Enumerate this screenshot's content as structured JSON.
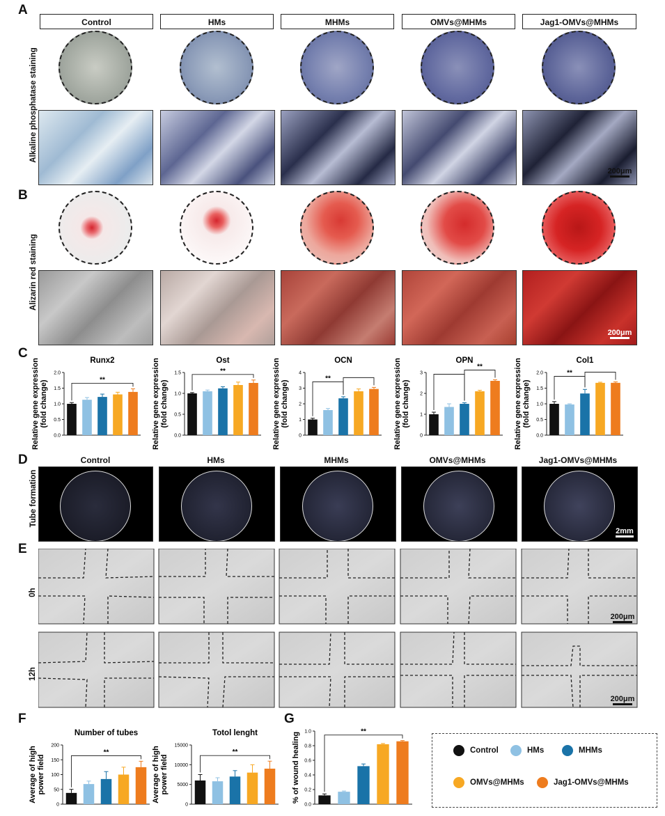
{
  "panel_letters": [
    "A",
    "B",
    "C",
    "D",
    "E",
    "F",
    "G"
  ],
  "groups": [
    "Control",
    "HMs",
    "MHMs",
    "OMVs@MHMs",
    "Jag1-OMVs@MHMs"
  ],
  "colors": {
    "Control": "#111111",
    "HMs": "#8fc1e3",
    "MHMs": "#1a73a8",
    "OMVs@MHMs": "#f7a823",
    "Jag1-OMVs@MHMs": "#ee7c1e"
  },
  "row_labels": {
    "alp": "Alkaline phosphatase staining",
    "ars": "Alizarin red staining",
    "tube": "Tube formation",
    "t0": "0h",
    "t12": "12h"
  },
  "scale_labels": {
    "um200": "200μm",
    "mm2": "2mm"
  },
  "panel_c_ylabel_line1": "Relative gene expression",
  "panel_c_ylabel_line2": "(fold change)",
  "panel_f_ylabel_line1": "Average of high",
  "panel_f_ylabel_line2": "power field",
  "panel_g_ylabel": "% of wound healing",
  "significance": "**",
  "chart_data": [
    {
      "type": "bar",
      "title": "Runx2",
      "categories": [
        "Control",
        "HMs",
        "MHMs",
        "OMVs@MHMs",
        "Jag1-OMVs@MHMs"
      ],
      "values": [
        1.0,
        1.13,
        1.22,
        1.3,
        1.38
      ],
      "errors": [
        0.04,
        0.07,
        0.09,
        0.07,
        0.1
      ],
      "ylim": [
        0,
        2.0
      ],
      "yticks": [
        "0.0",
        "0.5",
        "1.0",
        "1.5",
        "2.0"
      ],
      "ytick_values": [
        0,
        0.5,
        1,
        1.5,
        2
      ],
      "sig": [
        {
          "from": 0,
          "to": 4,
          "label": "**"
        }
      ]
    },
    {
      "type": "bar",
      "title": "Ost",
      "categories": [
        "Control",
        "HMs",
        "MHMs",
        "OMVs@MHMs",
        "Jag1-OMVs@MHMs"
      ],
      "values": [
        1.0,
        1.05,
        1.12,
        1.2,
        1.25
      ],
      "errors": [
        0.02,
        0.03,
        0.04,
        0.07,
        0.07
      ],
      "ylim": [
        0,
        1.5
      ],
      "yticks": [
        "0.0",
        "0.5",
        "1.0",
        "1.5"
      ],
      "ytick_values": [
        0,
        0.5,
        1,
        1.5
      ],
      "sig": [
        {
          "from": 0,
          "to": 4,
          "label": "**"
        }
      ]
    },
    {
      "type": "bar",
      "title": "OCN",
      "categories": [
        "Control",
        "HMs",
        "MHMs",
        "OMVs@MHMs",
        "Jag1-OMVs@MHMs"
      ],
      "values": [
        1.0,
        1.6,
        2.35,
        2.8,
        2.95
      ],
      "errors": [
        0.08,
        0.1,
        0.1,
        0.15,
        0.1
      ],
      "ylim": [
        0,
        4
      ],
      "yticks": [
        "0",
        "1",
        "2",
        "3",
        "4"
      ],
      "ytick_values": [
        0,
        1,
        2,
        3,
        4
      ],
      "sig": [
        {
          "from": 0,
          "to": 2,
          "label": "**"
        },
        {
          "from": 2,
          "to": 4,
          "label": ""
        }
      ]
    },
    {
      "type": "bar",
      "title": "OPN",
      "categories": [
        "Control",
        "HMs",
        "MHMs",
        "OMVs@MHMs",
        "Jag1-OMVs@MHMs"
      ],
      "values": [
        1.0,
        1.35,
        1.5,
        2.1,
        2.6
      ],
      "errors": [
        0.1,
        0.15,
        0.05,
        0.05,
        0.05
      ],
      "ylim": [
        0,
        3
      ],
      "yticks": [
        "0",
        "1",
        "2",
        "3"
      ],
      "ytick_values": [
        0,
        1,
        2,
        3
      ],
      "sig": [
        {
          "from": 0,
          "to": 2,
          "label": ""
        },
        {
          "from": 2,
          "to": 4,
          "label": "**"
        }
      ]
    },
    {
      "type": "bar",
      "title": "Col1",
      "categories": [
        "Control",
        "HMs",
        "MHMs",
        "OMVs@MHMs",
        "Jag1-OMVs@MHMs"
      ],
      "values": [
        1.0,
        0.98,
        1.33,
        1.67,
        1.67
      ],
      "errors": [
        0.07,
        0.02,
        0.13,
        0.02,
        0.03
      ],
      "ylim": [
        0,
        2.0
      ],
      "yticks": [
        "0.0",
        "0.5",
        "1.0",
        "1.5",
        "2.0"
      ],
      "ytick_values": [
        0,
        0.5,
        1,
        1.5,
        2
      ],
      "sig": [
        {
          "from": 0,
          "to": 2,
          "label": "**"
        },
        {
          "from": 2,
          "to": 4,
          "label": ""
        }
      ]
    },
    {
      "type": "bar",
      "title": "Number of tubes",
      "categories": [
        "Control",
        "HMs",
        "MHMs",
        "OMVs@MHMs",
        "Jag1-OMVs@MHMs"
      ],
      "values": [
        38,
        68,
        85,
        100,
        125
      ],
      "errors": [
        12,
        10,
        25,
        25,
        20
      ],
      "ylim": [
        0,
        200
      ],
      "yticks": [
        "0",
        "50",
        "100",
        "150",
        "200"
      ],
      "ytick_values": [
        0,
        50,
        100,
        150,
        200
      ],
      "sig": [
        {
          "from": 0,
          "to": 4,
          "label": "**"
        }
      ]
    },
    {
      "type": "bar",
      "title": "Totol lenght",
      "categories": [
        "Control",
        "HMs",
        "MHMs",
        "OMVs@MHMs",
        "Jag1-OMVs@MHMs"
      ],
      "values": [
        6000,
        5800,
        7000,
        8000,
        9000
      ],
      "errors": [
        1500,
        900,
        1500,
        2000,
        1900
      ],
      "ylim": [
        0,
        15000
      ],
      "yticks": [
        "0",
        "5000",
        "10000",
        "15000"
      ],
      "ytick_values": [
        0,
        5000,
        10000,
        15000
      ],
      "sig": [
        {
          "from": 0,
          "to": 4,
          "label": "**"
        }
      ]
    },
    {
      "type": "bar",
      "title": "",
      "categories": [
        "Control",
        "HMs",
        "MHMs",
        "OMVs@MHMs",
        "Jag1-OMVs@MHMs"
      ],
      "values": [
        0.12,
        0.17,
        0.52,
        0.82,
        0.86
      ],
      "errors": [
        0.02,
        0.01,
        0.03,
        0.01,
        0.01
      ],
      "ylim": [
        0,
        1.0
      ],
      "yticks": [
        "0.0",
        "0.2",
        "0.4",
        "0.6",
        "0.8",
        "1.0"
      ],
      "ytick_values": [
        0,
        0.2,
        0.4,
        0.6,
        0.8,
        1.0
      ],
      "sig": [
        {
          "from": 0,
          "to": 4,
          "label": "**"
        }
      ]
    }
  ]
}
